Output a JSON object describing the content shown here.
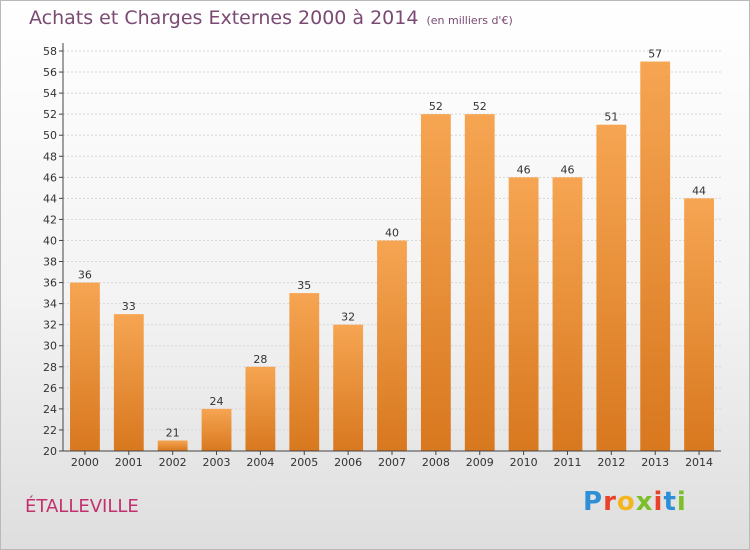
{
  "header": {
    "title": "Achats et Charges Externes 2000 à 2014",
    "unit": "(en milliers d'€)"
  },
  "location": "ÉTALLEVILLE",
  "brand": {
    "letters": [
      "P",
      "r",
      "o",
      "x",
      "i",
      "t",
      "i"
    ],
    "colors": [
      "#2e8fd6",
      "#e8432a",
      "#f3b61f",
      "#7cbf2a",
      "#e8432a",
      "#2e8fd6",
      "#7cbf2a"
    ]
  },
  "chart_data": {
    "type": "bar",
    "title": "Achats et Charges Externes 2000 à 2014",
    "categories": [
      "2000",
      "2001",
      "2002",
      "2003",
      "2004",
      "2005",
      "2006",
      "2007",
      "2008",
      "2009",
      "2010",
      "2011",
      "2012",
      "2013",
      "2014"
    ],
    "values": [
      36,
      33,
      21,
      24,
      28,
      35,
      32,
      40,
      52,
      52,
      46,
      46,
      51,
      57,
      44
    ],
    "ylim": [
      20,
      58
    ],
    "ytick_step": 2,
    "grid": true,
    "bar_color_top": "#f6a552",
    "bar_color_bottom": "#d8781f"
  }
}
